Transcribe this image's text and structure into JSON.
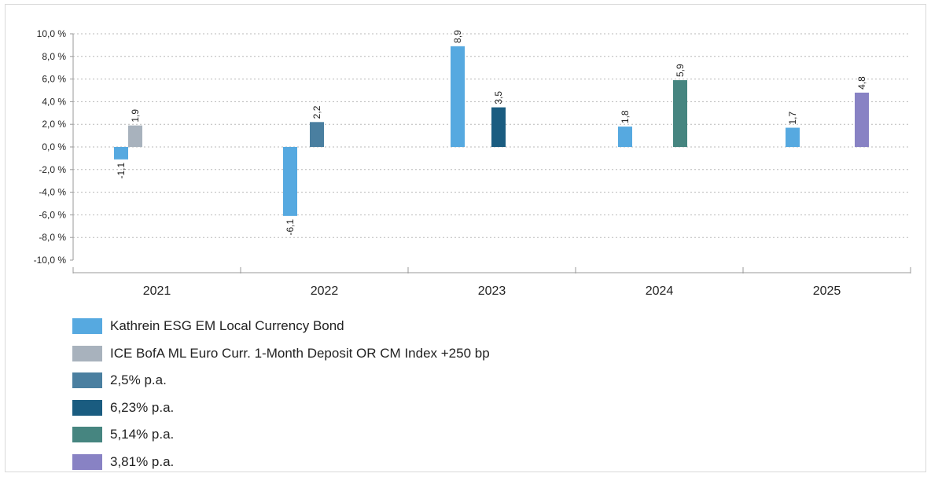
{
  "chart_data": {
    "type": "bar",
    "categories": [
      "2021",
      "2022",
      "2023",
      "2024",
      "2025"
    ],
    "ylim": [
      -10,
      10
    ],
    "yticks": [
      10,
      8,
      6,
      4,
      2,
      0,
      -2,
      -4,
      -6,
      -8,
      -10
    ],
    "ytick_labels": [
      "10,0 %",
      "8,0 %",
      "6,0 %",
      "4,0 %",
      "2,0 %",
      "0,0 %",
      "-2,0 %",
      "-4,0 %",
      "-6,0 %",
      "-8,0 %",
      "-10,0 %"
    ],
    "grid": true,
    "legend_position": "bottom-left",
    "series": [
      {
        "name": "Kathrein ESG EM Local Currency Bond",
        "color": "#56a9e0",
        "values": [
          -1.1,
          -6.1,
          8.9,
          1.8,
          1.7
        ],
        "labels": [
          "-1,1",
          "-6,1",
          "8,9",
          "1,8",
          "1,7"
        ]
      },
      {
        "name": "ICE BofA ML Euro Curr. 1-Month Deposit OR CM Index +250 bp",
        "color": "#a8b2bd",
        "values": [
          1.9,
          null,
          null,
          null,
          null
        ],
        "labels": [
          "1,9",
          "",
          "",
          "",
          ""
        ]
      },
      {
        "name": "2,5% p.a.",
        "color": "#4a7fa0",
        "values": [
          null,
          2.2,
          null,
          null,
          null
        ],
        "labels": [
          "",
          "2,2",
          "",
          "",
          ""
        ]
      },
      {
        "name": "6,23% p.a.",
        "color": "#1a5c80",
        "values": [
          null,
          null,
          3.5,
          null,
          null
        ],
        "labels": [
          "",
          "",
          "3,5",
          "",
          ""
        ]
      },
      {
        "name": "5,14% p.a.",
        "color": "#468580",
        "values": [
          null,
          null,
          null,
          5.9,
          null
        ],
        "labels": [
          "",
          "",
          "",
          "5,9",
          ""
        ]
      },
      {
        "name": "3,81% p.a.",
        "color": "#8882c4",
        "values": [
          null,
          null,
          null,
          null,
          4.8
        ],
        "labels": [
          "",
          "",
          "",
          "",
          "4,8"
        ]
      }
    ]
  },
  "legend": [
    {
      "label": "Kathrein ESG EM Local Currency Bond",
      "color": "#56a9e0"
    },
    {
      "label": "ICE BofA ML Euro Curr. 1-Month Deposit OR CM Index +250 bp",
      "color": "#a8b2bd"
    },
    {
      "label": "2,5% p.a.",
      "color": "#4a7fa0"
    },
    {
      "label": "6,23% p.a.",
      "color": "#1a5c80"
    },
    {
      "label": "5,14% p.a.",
      "color": "#468580"
    },
    {
      "label": "3,81% p.a.",
      "color": "#8882c4"
    }
  ]
}
